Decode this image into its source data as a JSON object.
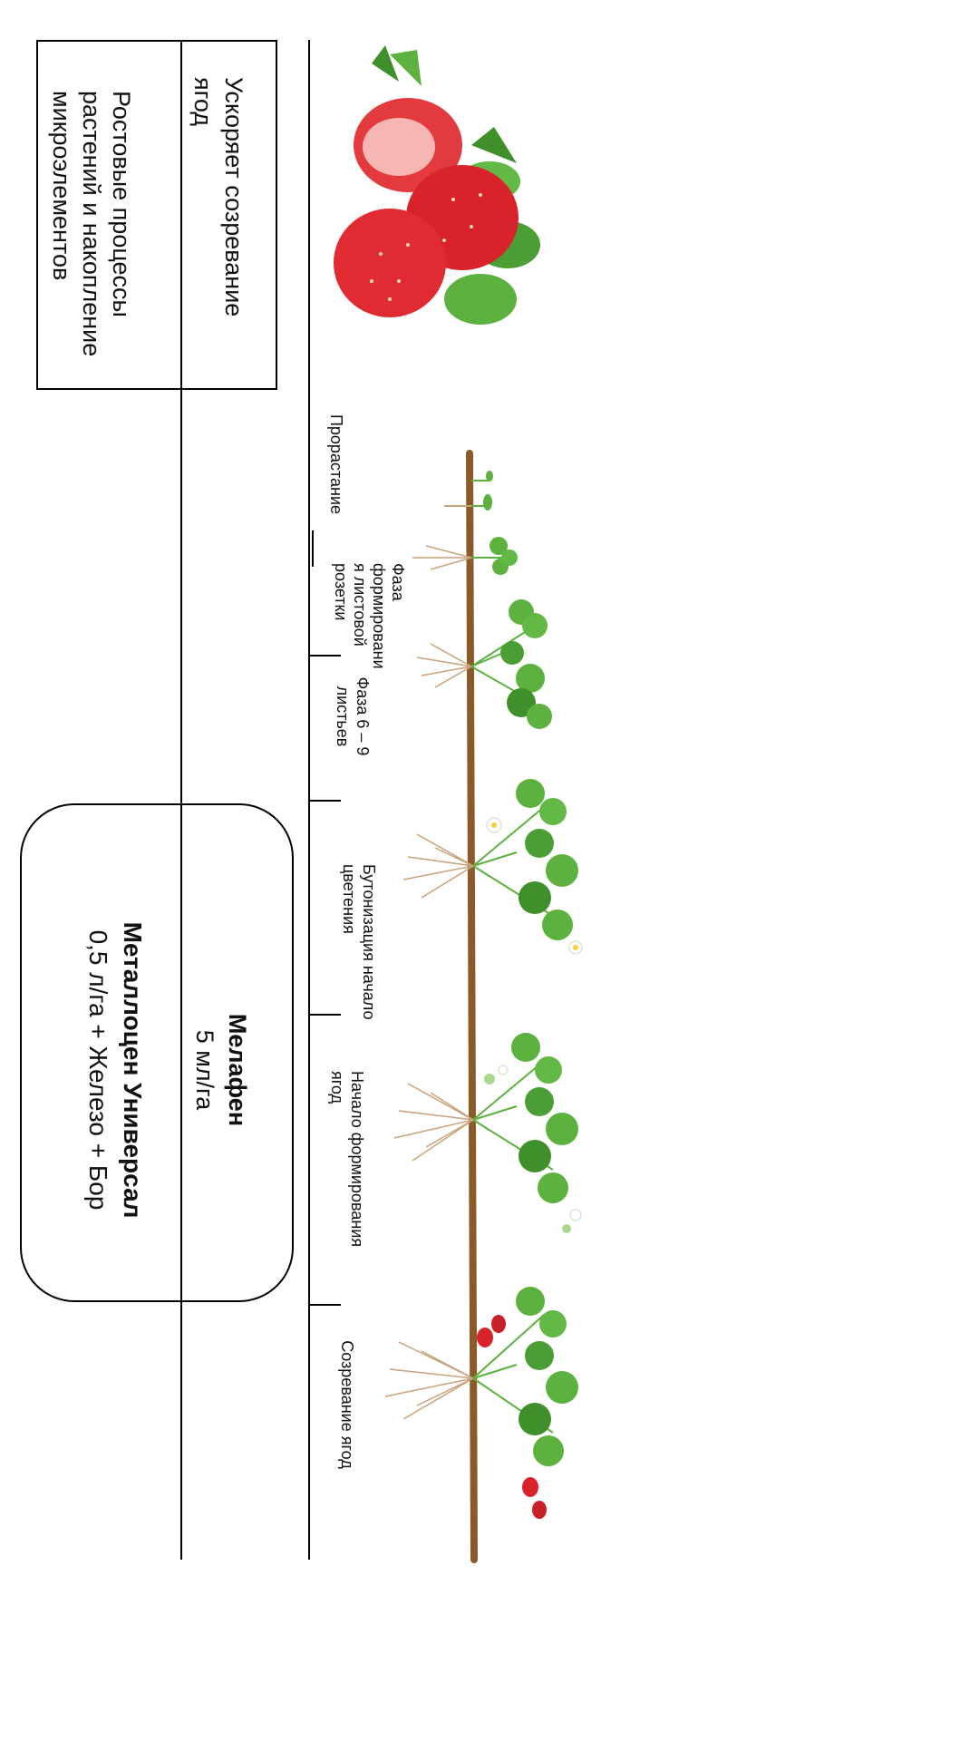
{
  "effects": {
    "ripening": "Ускоряет созревание\nягод",
    "growth": "Ростовые процессы\nрастений и накопление\nмикроэлементов"
  },
  "stages": [
    "Прорастание",
    "Фаза\nформировани\nя листовой\nрозетки",
    "Фаза 6 – 9\nлистьев",
    "Бутонизация начало\nцветения",
    "Начало формирования\nягод",
    "Созревание ягод"
  ],
  "products": {
    "melafen_name": "Мелафен",
    "melafen_dose": "5 мл/га",
    "metallocen_name": "Металлоцен Универсал",
    "metallocen_dose": "0,5 л/га + Железо + Бор"
  },
  "colors": {
    "stem": "#8a5a2b",
    "leaf": "#5cb13f",
    "leaf_dark": "#3f8f2a",
    "root": "#c8a27a",
    "berry": "#d8232a",
    "flower": "#ffffff"
  }
}
